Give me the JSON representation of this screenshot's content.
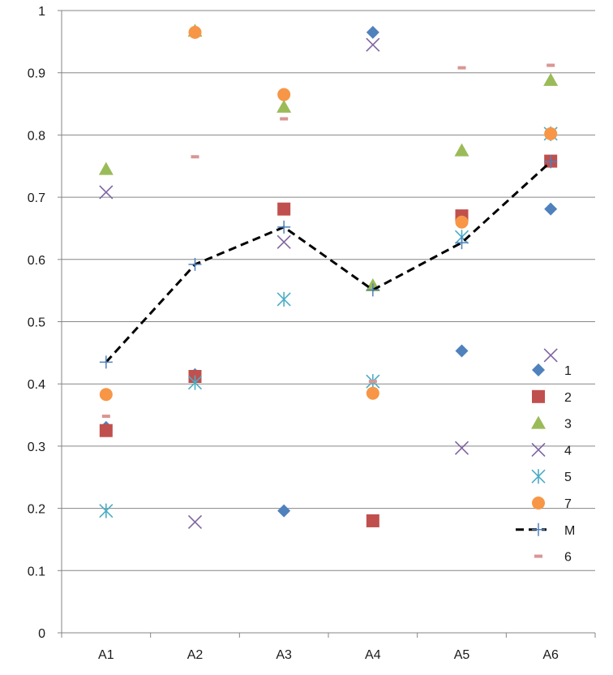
{
  "chart_data": {
    "type": "scatter",
    "categories": [
      "A1",
      "A2",
      "A3",
      "A4",
      "A5",
      "A6"
    ],
    "ylim": [
      0,
      1
    ],
    "yticks": [
      "0",
      "0.1",
      "0.2",
      "0.3",
      "0.4",
      "0.5",
      "0.6",
      "0.7",
      "0.8",
      "0.9",
      "1"
    ],
    "grid": true,
    "legend_position": "right",
    "series": [
      {
        "name": "1",
        "marker": "diamond",
        "color": "#4f81bd",
        "values": [
          0.33,
          0.415,
          0.196,
          0.965,
          0.453,
          0.681
        ]
      },
      {
        "name": "2",
        "marker": "square",
        "color": "#c0504d",
        "values": [
          0.325,
          0.412,
          0.681,
          0.18,
          0.67,
          0.758
        ]
      },
      {
        "name": "3",
        "marker": "triangle",
        "color": "#9bbb59",
        "values": [
          0.745,
          0.967,
          0.845,
          0.558,
          0.775,
          0.888
        ]
      },
      {
        "name": "4",
        "marker": "x",
        "color": "#8064a2",
        "values": [
          0.708,
          0.178,
          0.628,
          0.945,
          0.297,
          0.446
        ]
      },
      {
        "name": "5",
        "marker": "star",
        "color": "#4bacc6",
        "values": [
          0.196,
          0.402,
          0.536,
          0.404,
          0.636,
          0.802
        ]
      },
      {
        "name": "7",
        "marker": "circle",
        "color": "#f79646",
        "values": [
          0.383,
          0.965,
          0.865,
          0.385,
          0.66,
          0.802
        ]
      },
      {
        "name": "M",
        "marker": "plus",
        "line": "dashed",
        "color": "#000000",
        "marker_color": "#4f81bd",
        "values": [
          0.435,
          0.592,
          0.652,
          0.551,
          0.627,
          0.757
        ]
      },
      {
        "name": "6",
        "marker": "dash",
        "color": "#d99694",
        "values": [
          0.348,
          0.765,
          0.826,
          0.404,
          0.908,
          0.912
        ]
      }
    ]
  }
}
